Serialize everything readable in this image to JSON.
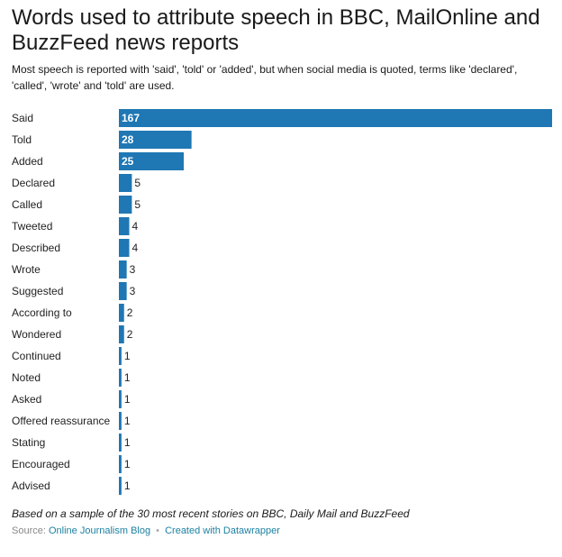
{
  "title": "Words used to attribute speech in BBC, MailOnline and BuzzFeed news reports",
  "subtitle": "Most speech is reported with 'said', 'told' or 'added', but when social media is quoted, terms like 'declared', 'called', 'wrote' and 'told' are used.",
  "notes": "Based on a sample of the 30 most recent stories on BBC, Daily Mail and BuzzFeed",
  "footer": {
    "source_label": "Source:",
    "source_link": "Online Journalism Blog",
    "separator": "•",
    "credit_link": "Created with Datawrapper"
  },
  "colors": {
    "bar": "#1f77b4",
    "label_inside": "#ffffff",
    "label_outside": "#222222"
  },
  "chart_data": {
    "type": "bar",
    "orientation": "horizontal",
    "categories": [
      "Said",
      "Told",
      "Added",
      "Declared",
      "Called",
      "Tweeted",
      "Described",
      "Wrote",
      "Suggested",
      "According to",
      "Wondered",
      "Continued",
      "Noted",
      "Asked",
      "Offered reassurance",
      "Stating",
      "Encouraged",
      "Advised"
    ],
    "values": [
      167,
      28,
      25,
      5,
      5,
      4,
      4,
      3,
      3,
      2,
      2,
      1,
      1,
      1,
      1,
      1,
      1,
      1
    ],
    "title": "Words used to attribute speech in BBC, MailOnline and BuzzFeed news reports",
    "xlabel": "",
    "ylabel": "",
    "xlim": [
      0,
      167
    ],
    "grid": false
  }
}
